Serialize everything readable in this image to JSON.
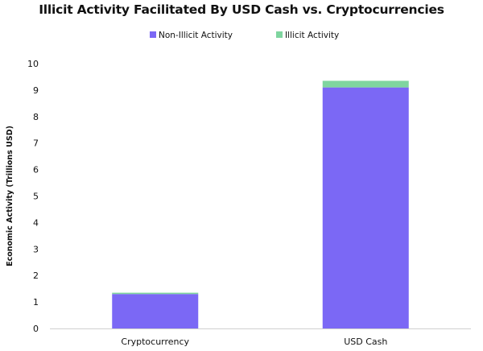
{
  "chart_data": {
    "type": "bar",
    "stacked": true,
    "title": "Illicit Activity Facilitated By USD Cash vs. Cryptocurrencies",
    "xlabel": "",
    "ylabel": "Economic Activity (Trillions USD)",
    "categories": [
      "Cryptocurrency",
      "USD Cash"
    ],
    "series": [
      {
        "name": "Non-Illicit Activity",
        "values": [
          1.3,
          9.1
        ],
        "color": "#7b68f5"
      },
      {
        "name": "Illicit Activity",
        "values": [
          0.05,
          0.25
        ],
        "color": "#7fd59f"
      }
    ],
    "ylim": [
      0,
      10
    ],
    "yticks": [
      0,
      1,
      2,
      3,
      4,
      5,
      6,
      7,
      8,
      9,
      10
    ],
    "grid": false,
    "legend_position": "top-center"
  }
}
